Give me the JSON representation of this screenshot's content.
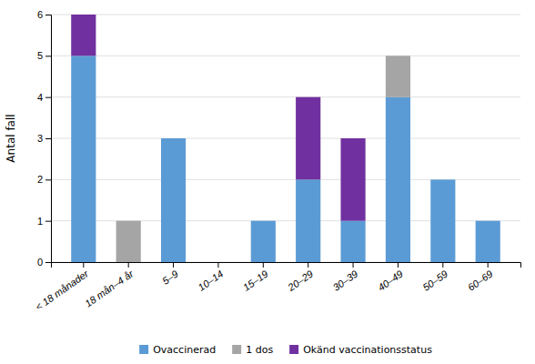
{
  "chart_data": {
    "type": "bar",
    "stacked": true,
    "categories": [
      "< 18 månader",
      "18 mån–4 år",
      "5–9",
      "10–14",
      "15–19",
      "20–29",
      "30–39",
      "40–49",
      "50–59",
      "60–69"
    ],
    "series": [
      {
        "name": "Ovaccinerad",
        "color": "#5b9bd5",
        "values": [
          5,
          0,
          3,
          0,
          1,
          2,
          1,
          4,
          2,
          1
        ]
      },
      {
        "name": "1 dos",
        "color": "#a5a5a5",
        "values": [
          0,
          1,
          0,
          0,
          0,
          0,
          0,
          1,
          0,
          0
        ]
      },
      {
        "name": "Okänd vaccinationsstatus",
        "color": "#7030a0",
        "values": [
          1,
          0,
          0,
          0,
          0,
          2,
          2,
          0,
          0,
          0
        ]
      }
    ],
    "ylabel": "Antal fall",
    "ylim": [
      0,
      6
    ],
    "yticks": [
      0,
      1,
      2,
      3,
      4,
      5,
      6
    ],
    "grid": true,
    "legend": "bottom"
  }
}
